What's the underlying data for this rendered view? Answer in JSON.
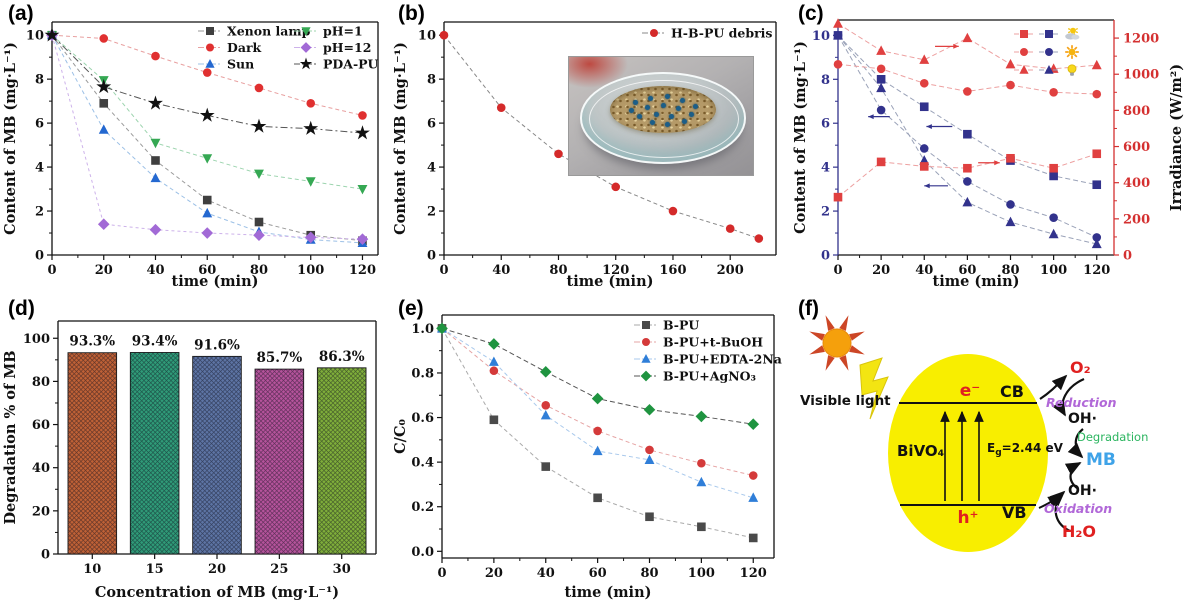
{
  "panels": {
    "a": "(a)",
    "b": "(b)",
    "c": "(c)",
    "d": "(d)",
    "e": "(e)",
    "f": "(f)"
  },
  "chart_data": [
    {
      "id": "a",
      "type": "line",
      "xlabel": "time (min)",
      "ylabel": "Content of MB (mg·L⁻¹)",
      "xlim": [
        0,
        126
      ],
      "ylim": [
        0,
        10.6
      ],
      "grid": false,
      "legend_position": "top-right",
      "xticks": [
        0,
        20,
        40,
        60,
        80,
        100,
        120
      ],
      "xticklabels": [
        "0",
        "20",
        "40",
        "60",
        "80",
        "100",
        "120"
      ],
      "yticks": [
        0,
        2,
        4,
        6,
        8,
        10
      ],
      "yticklabels": [
        "0",
        "2",
        "4",
        "6",
        "8",
        "10"
      ],
      "x": [
        0,
        20,
        40,
        60,
        80,
        100,
        120
      ],
      "series": [
        {
          "name": "Xenon lamp",
          "marker": "square",
          "color": "#3f3f3f",
          "line": "#9a9a9a",
          "dash": "4 3",
          "values": [
            10,
            6.9,
            4.3,
            2.5,
            1.5,
            0.9,
            0.65
          ]
        },
        {
          "name": "Dark",
          "marker": "circle",
          "color": "#e03030",
          "line": "#e8a0a0",
          "dash": "4 3",
          "values": [
            10,
            9.85,
            9.05,
            8.3,
            7.6,
            6.9,
            6.35
          ]
        },
        {
          "name": "Sun",
          "marker": "triangle",
          "color": "#2468d0",
          "line": "#9cc0e6",
          "dash": "4 3",
          "values": [
            10,
            5.7,
            3.5,
            1.9,
            1.05,
            0.7,
            0.55
          ]
        },
        {
          "name": "pH=1",
          "marker": "triangle-down",
          "color": "#35a853",
          "line": "#9cd4ae",
          "dash": "4 3",
          "values": [
            10,
            7.95,
            5.1,
            4.4,
            3.7,
            3.35,
            3.0
          ]
        },
        {
          "name": "pH=12",
          "marker": "diamond",
          "color": "#a26ad6",
          "line": "#cdb2ea",
          "dash": "3 3",
          "values": [
            10,
            1.4,
            1.15,
            1.0,
            0.9,
            0.8,
            0.72
          ]
        },
        {
          "name": "PDA-PU",
          "marker": "star",
          "ms": 6,
          "color": "#111111",
          "line": "#555555",
          "dash": "7 3 2 3",
          "values": [
            10,
            7.65,
            6.9,
            6.35,
            5.85,
            5.75,
            5.55
          ]
        }
      ]
    },
    {
      "id": "b",
      "type": "line",
      "xlabel": "time (min)",
      "ylabel": "Content of MB (mg·L⁻¹)",
      "xlim": [
        0,
        232
      ],
      "ylim": [
        0,
        10.6
      ],
      "grid": false,
      "legend_position": "top-right",
      "xticks": [
        0,
        40,
        80,
        120,
        160,
        200
      ],
      "xticklabels": [
        "0",
        "40",
        "80",
        "120",
        "160",
        "200"
      ],
      "yticks": [
        0,
        2,
        4,
        6,
        8,
        10
      ],
      "yticklabels": [
        "0",
        "2",
        "4",
        "6",
        "8",
        "10"
      ],
      "x": [
        0,
        40,
        80,
        120,
        160,
        200,
        220
      ],
      "series": [
        {
          "name": "H-B-PU debris",
          "marker": "circle",
          "color": "#d42a2a",
          "line": "#888888",
          "dash": "4 3",
          "values": [
            10,
            6.7,
            4.6,
            3.1,
            2.0,
            1.2,
            0.75
          ]
        }
      ],
      "inset_label": "H-B-PU debris in glass petri dish"
    },
    {
      "id": "c",
      "type": "line",
      "xlabel": "time (min)",
      "ylabel": "Content of MB (mg·L⁻¹)",
      "ylabel_right": "Irradiance (W/m²)",
      "xlim": [
        0,
        128
      ],
      "ylim": [
        0,
        10.7
      ],
      "ylim2": [
        0,
        1300
      ],
      "grid": false,
      "legend_position": "top-right",
      "xticks": [
        0,
        20,
        40,
        60,
        80,
        100,
        120
      ],
      "xticklabels": [
        "0",
        "20",
        "40",
        "60",
        "80",
        "100",
        "120"
      ],
      "yticks": [
        0,
        2,
        4,
        6,
        8,
        10
      ],
      "yticklabels": [
        "0",
        "2",
        "4",
        "6",
        "8",
        "10"
      ],
      "y2ticks": [
        0,
        200,
        400,
        600,
        800,
        1000,
        1200
      ],
      "y2ticklabels": [
        "0",
        "200",
        "400",
        "600",
        "800",
        "1000",
        "1200"
      ],
      "ytick_color": "#32328c",
      "y2tick_color": "#d43030",
      "spines": {
        "left": "#32328c",
        "right": "#d43030",
        "top": "#111111",
        "bottom": "#111111"
      },
      "x": [
        0,
        20,
        40,
        60,
        80,
        100,
        120
      ],
      "series": [
        {
          "name": "MB content - partly cloudy",
          "axis": "left",
          "marker": "square",
          "color": "#32328c",
          "line": "#9aa2b8",
          "dash": "5 3",
          "values": [
            10,
            8.0,
            6.75,
            5.5,
            4.3,
            3.6,
            3.2
          ]
        },
        {
          "name": "MB content - sunny",
          "axis": "left",
          "marker": "circle",
          "color": "#32328c",
          "line": "#9aa2b8",
          "dash": "5 3",
          "values": [
            10,
            6.6,
            4.85,
            3.35,
            2.3,
            1.7,
            0.8
          ]
        },
        {
          "name": "MB content - xenon lamp",
          "axis": "left",
          "marker": "triangle",
          "color": "#32328c",
          "line": "#9aa2b8",
          "dash": "5 3",
          "values": [
            10,
            7.6,
            4.3,
            2.4,
            1.5,
            0.95,
            0.5
          ]
        },
        {
          "name": "Irradiance - partly cloudy",
          "axis": "right",
          "marker": "square",
          "color": "#e04040",
          "line": "#eda0a0",
          "dash": "5 3",
          "values": [
            320,
            515,
            490,
            480,
            535,
            480,
            560
          ]
        },
        {
          "name": "Irradiance - sunny",
          "axis": "right",
          "marker": "circle",
          "color": "#e04040",
          "line": "#eda0a0",
          "dash": "5 3",
          "values": [
            1055,
            1030,
            950,
            905,
            940,
            900,
            890
          ]
        },
        {
          "name": "Irradiance - xenon lamp",
          "axis": "right",
          "marker": "triangle",
          "color": "#e04040",
          "line": "#eda0a0",
          "dash": "5 3",
          "values": [
            1280,
            1130,
            1080,
            1200,
            1055,
            1030,
            1050
          ]
        }
      ],
      "legend_pairs": [
        {
          "marker": "square",
          "red": "#e04040",
          "blue": "#32328c",
          "icon": "cloudy-sun-icon"
        },
        {
          "marker": "circle",
          "red": "#e04040",
          "blue": "#32328c",
          "icon": "sun-icon"
        },
        {
          "marker": "triangle",
          "red": "#e04040",
          "blue": "#32328c",
          "icon": "bulb-icon"
        }
      ],
      "arrows": [
        {
          "x1": 24,
          "y1": 6.3,
          "x2": 14,
          "y2": 6.3,
          "color": "#32328c"
        },
        {
          "x1": 53,
          "y1": 5.85,
          "x2": 41,
          "y2": 5.85,
          "color": "#32328c"
        },
        {
          "x1": 51,
          "y1": 3.15,
          "x2": 40,
          "y2": 3.15,
          "color": "#32328c"
        },
        {
          "x1": 45,
          "y1": 9.5,
          "x2": 56,
          "y2": 9.5,
          "color": "#e04040"
        },
        {
          "x1": 65,
          "y1": 4.2,
          "x2": 75,
          "y2": 4.2,
          "color": "#e04040"
        }
      ]
    },
    {
      "id": "d",
      "type": "bar",
      "xlabel": "Concentration of MB (mg·L⁻¹)",
      "ylabel": "Degradation % of MB",
      "xlim": [
        0.45,
        5.55
      ],
      "ylim": [
        0,
        108
      ],
      "grid": false,
      "categories": [
        "10",
        "15",
        "20",
        "25",
        "30"
      ],
      "values": [
        93.3,
        93.4,
        91.6,
        85.7,
        86.3
      ],
      "value_labels": [
        "93.3%",
        "93.4%",
        "91.6%",
        "85.7%",
        "86.3%"
      ],
      "colors": [
        "#bf6136",
        "#2f9b78",
        "#5d74a4",
        "#b5539b",
        "#7fae3a"
      ],
      "yticks": [
        0,
        20,
        40,
        60,
        80,
        100
      ],
      "yticklabels": [
        "0",
        "20",
        "40",
        "60",
        "80",
        "100"
      ]
    },
    {
      "id": "e",
      "type": "line",
      "xlabel": "time (min)",
      "ylabel": "C/C₀",
      "xlim": [
        0,
        128
      ],
      "ylim": [
        -0.03,
        1.06
      ],
      "grid": false,
      "legend_position": "top-right",
      "xticks": [
        0,
        20,
        40,
        60,
        80,
        100,
        120
      ],
      "xticklabels": [
        "0",
        "20",
        "40",
        "60",
        "80",
        "100",
        "120"
      ],
      "yticks": [
        0,
        0.2,
        0.4,
        0.6,
        0.8,
        1.0
      ],
      "yticklabels": [
        "0.0",
        "0.2",
        "0.4",
        "0.6",
        "0.8",
        "1.0"
      ],
      "x": [
        0,
        20,
        40,
        60,
        80,
        100,
        120
      ],
      "series": [
        {
          "name": "B-PU",
          "marker": "square",
          "color": "#4a4a4a",
          "line": "#aaaaaa",
          "dash": "4 3",
          "values": [
            1.0,
            0.59,
            0.38,
            0.24,
            0.155,
            0.11,
            0.06
          ]
        },
        {
          "name": "B-PU+t-BuOH",
          "marker": "circle",
          "color": "#d43a3a",
          "line": "#e6a4a4",
          "dash": "4 3",
          "values": [
            1.0,
            0.81,
            0.655,
            0.54,
            0.455,
            0.395,
            0.34
          ]
        },
        {
          "name": "B-PU+EDTA-2Na",
          "marker": "triangle",
          "color": "#2f7ed8",
          "line": "#a9c9ec",
          "dash": "4 3",
          "values": [
            1.0,
            0.85,
            0.61,
            0.45,
            0.41,
            0.31,
            0.24
          ]
        },
        {
          "name": "B-PU+AgNO₃",
          "marker": "diamond",
          "color": "#1f9440",
          "line": "#555555",
          "dash": "5 3",
          "values": [
            1.0,
            0.93,
            0.805,
            0.685,
            0.635,
            0.605,
            0.57
          ]
        }
      ]
    }
  ],
  "diagram": {
    "visible_light": "Visible light",
    "catalyst": "BiVO₄",
    "electron": "e⁻",
    "cb": "CB",
    "hole": "h⁺",
    "vb": "VB",
    "eg_e": "E",
    "eg_sub": "g",
    "eg_val": "=2.44 eV",
    "o2": "O₂",
    "reduction": "Reduction",
    "oh_top": "OH·",
    "degradation": "Degradation",
    "mb": "MB",
    "oh_bottom": "OH·",
    "oxidation": "Oxidation",
    "h2o": "H₂O",
    "colors": {
      "particle": "#f8ee00",
      "red": "#e02020",
      "purple": "#b168d8",
      "green": "#2cb560",
      "mb_blue": "#3fa3e8",
      "sun_body": "#f5a00c",
      "ray": "#cc4626",
      "bolt": "#f3e512"
    }
  }
}
